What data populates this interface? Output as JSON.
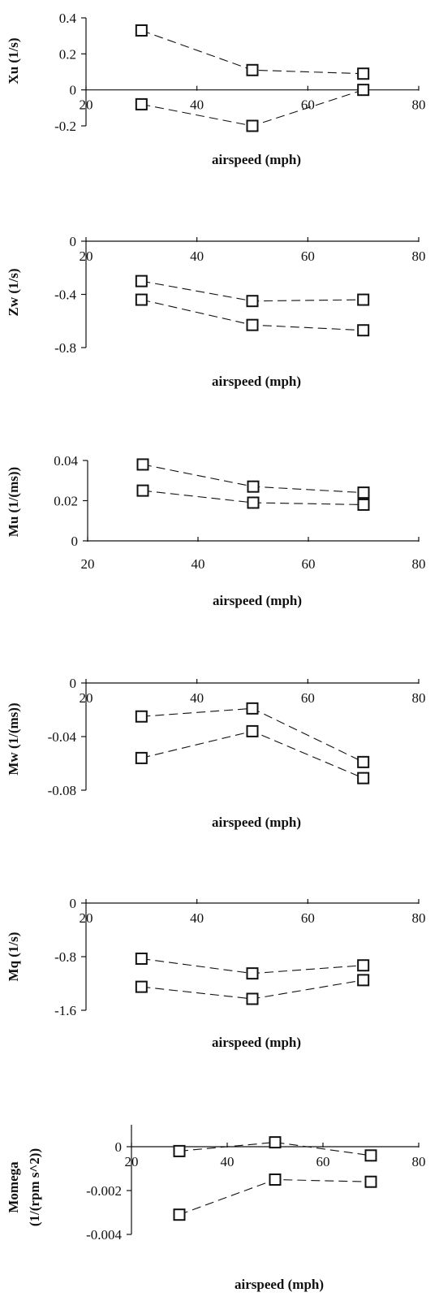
{
  "chart_data": [
    {
      "type": "line",
      "ylabel": "Xu   (1/s)",
      "xlabel": "airspeed   (mph)",
      "xlim": [
        20,
        80
      ],
      "xticks": [
        "20",
        "40",
        "60",
        "80"
      ],
      "ylim": [
        -0.2,
        0.4
      ],
      "yticks": [
        "0.4",
        "0.2",
        "0",
        "-0.2"
      ],
      "ytick_values": [
        0.4,
        0.2,
        0,
        -0.2
      ],
      "series": [
        {
          "x": [
            30,
            50,
            70
          ],
          "values": [
            0.33,
            0.11,
            0.09
          ]
        },
        {
          "x": [
            30,
            50,
            70
          ],
          "values": [
            -0.08,
            -0.2,
            0.0
          ]
        }
      ]
    },
    {
      "type": "line",
      "ylabel": "Zw   (1/s)",
      "xlabel": "airspeed   (mph)",
      "xlim": [
        20,
        80
      ],
      "xticks": [
        "20",
        "40",
        "60",
        "80"
      ],
      "ylim": [
        -0.8,
        0
      ],
      "yticks": [
        "0",
        "-0.4",
        "-0.8"
      ],
      "ytick_values": [
        0,
        -0.4,
        -0.8
      ],
      "series": [
        {
          "x": [
            30,
            50,
            70
          ],
          "values": [
            -0.3,
            -0.45,
            -0.44
          ]
        },
        {
          "x": [
            30,
            50,
            70
          ],
          "values": [
            -0.44,
            -0.63,
            -0.67
          ]
        }
      ]
    },
    {
      "type": "line",
      "ylabel": "Mu   (1/(ms))",
      "xlabel": "airspeed   (mph)",
      "xlim": [
        20,
        80
      ],
      "xticks": [
        "20",
        "40",
        "60",
        "80"
      ],
      "ylim": [
        0,
        0.04
      ],
      "yticks": [
        "0.04",
        "0.02",
        "0"
      ],
      "ytick_values": [
        0.04,
        0.02,
        0
      ],
      "series": [
        {
          "x": [
            30,
            50,
            70
          ],
          "values": [
            0.038,
            0.027,
            0.024
          ]
        },
        {
          "x": [
            30,
            50,
            70
          ],
          "values": [
            0.025,
            0.019,
            0.018
          ]
        }
      ]
    },
    {
      "type": "line",
      "ylabel": "Mw   (1/(ms))",
      "xlabel": "airspeed   (mph)",
      "xlim": [
        20,
        80
      ],
      "xticks": [
        "20",
        "40",
        "60",
        "80"
      ],
      "ylim": [
        -0.08,
        0
      ],
      "yticks": [
        "0",
        "-0.04",
        "-0.08"
      ],
      "ytick_values": [
        0,
        -0.04,
        -0.08
      ],
      "series": [
        {
          "x": [
            30,
            50,
            70
          ],
          "values": [
            -0.025,
            -0.019,
            -0.059
          ]
        },
        {
          "x": [
            30,
            50,
            70
          ],
          "values": [
            -0.056,
            -0.036,
            -0.071
          ]
        }
      ]
    },
    {
      "type": "line",
      "ylabel": "Mq   (1/s)",
      "xlabel": "airspeed   (mph)",
      "xlim": [
        20,
        80
      ],
      "xticks": [
        "20",
        "40",
        "60",
        "80"
      ],
      "ylim": [
        -1.6,
        0
      ],
      "yticks": [
        "0",
        "-0.8",
        "-1.6"
      ],
      "ytick_values": [
        0,
        -0.8,
        -1.6
      ],
      "series": [
        {
          "x": [
            30,
            50,
            70
          ],
          "values": [
            -0.83,
            -1.05,
            -0.93
          ]
        },
        {
          "x": [
            30,
            50,
            70
          ],
          "values": [
            -1.25,
            -1.43,
            -1.15
          ]
        }
      ]
    },
    {
      "type": "line",
      "ylabel": "Momega",
      "ylabel2": "(1/(rpm   s^2))",
      "xlabel": "airspeed   (mph)",
      "xlim": [
        20,
        80
      ],
      "xticks": [
        "20",
        "40",
        "60",
        "80"
      ],
      "ylim": [
        -0.004,
        0.001
      ],
      "yticks": [
        "0",
        "-0.002",
        "-0.004"
      ],
      "ytick_values": [
        0,
        -0.002,
        -0.004
      ],
      "series": [
        {
          "x": [
            30,
            50,
            70
          ],
          "values": [
            -0.0002,
            0.0002,
            -0.0004
          ]
        },
        {
          "x": [
            30,
            50,
            70
          ],
          "values": [
            -0.0031,
            -0.0015,
            -0.0016
          ]
        }
      ]
    }
  ]
}
